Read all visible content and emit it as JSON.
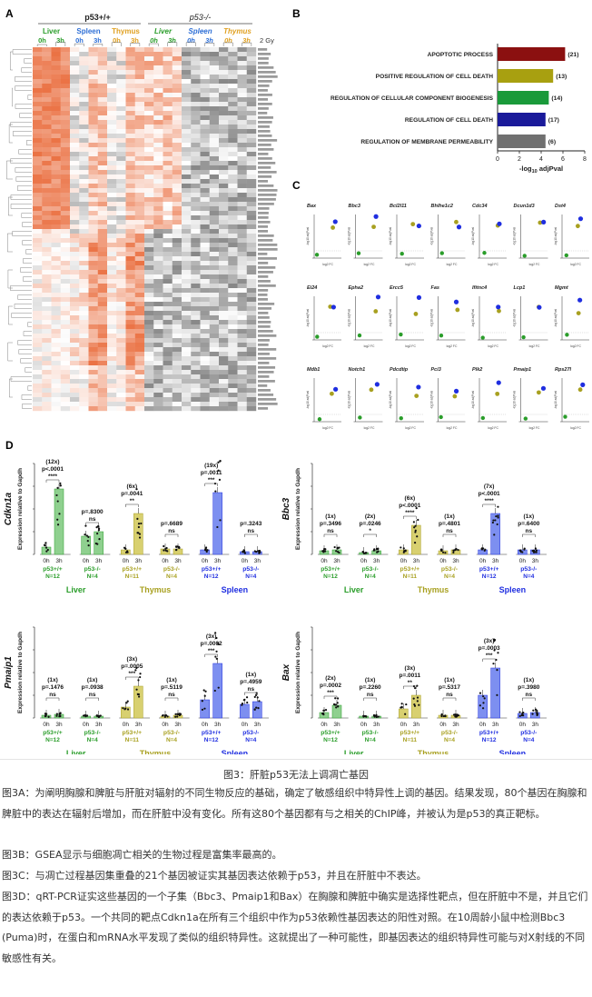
{
  "panel_a": {
    "letter": "A",
    "groups": [
      {
        "label": "p53+/+",
        "italic": false
      },
      {
        "label": "p53-/-",
        "italic": true
      }
    ],
    "tissues": [
      {
        "label": "Liver",
        "color": "#2a9d2a"
      },
      {
        "label": "Spleen",
        "color": "#2e6fd6"
      },
      {
        "label": "Thymus",
        "color": "#e0a020"
      },
      {
        "label": "Liver",
        "color": "#2a9d2a"
      },
      {
        "label": "Spleen",
        "color": "#2e6fd6"
      },
      {
        "label": "Thymus",
        "color": "#e0a020"
      }
    ],
    "timepoints": [
      "0h",
      "3h"
    ],
    "dose": "2 Gy",
    "colors": {
      "high": "#e8622f",
      "mid": "#ffffff",
      "low": "#555555"
    }
  },
  "panel_b": {
    "letter": "B",
    "xlabel_prefix": "-log",
    "xlabel_sub": "10",
    "xlabel_suffix": " adjPval",
    "xticks": [
      "0",
      "2",
      "4",
      "6",
      "8"
    ]
  },
  "panel_c": {
    "letter": "C",
    "genes": [
      "Bax",
      "Bbc3",
      "Bcl2l11",
      "Bhlhe1c2",
      "Cdc34",
      "Dcun1d3",
      "Dst4",
      "Ei24",
      "Epha2",
      "Ercc5",
      "Fas",
      "Ifitnc4",
      "Lcp1",
      "Mgmt",
      "Mdb1",
      "Notch1",
      "Pdcdtip",
      "Pci3",
      "Plk2",
      "Pmaip1",
      "Rps27l"
    ],
    "ylabel": "-log10 adjPval",
    "xlabel": "log2 FC",
    "colors": {
      "liver": "#2a9d2a",
      "spleen": "#1f2ee0",
      "thymus": "#a8a020"
    }
  },
  "panel_d": {
    "letter": "D",
    "ylabel_suffix": " Expression relative to Gapdh",
    "plots": [
      {
        "gene": "Cdkn1a",
        "ylabel": "Expression relative to Gapdh",
        "labels": [
          {
            "fold": "(12x)",
            "p": "p<.0001",
            "stars": "****"
          },
          {
            "fold": "",
            "p": "p=.8300",
            "stars": "ns"
          },
          {
            "fold": "(6x)",
            "p": "p=.0041",
            "stars": "**"
          },
          {
            "fold": "",
            "p": "p=.6689",
            "stars": "ns"
          },
          {
            "fold": "(19x)",
            "p": "p=.0011",
            "stars": "***"
          },
          {
            "fold": "",
            "p": "p=.3243",
            "stars": "ns"
          }
        ]
      },
      {
        "gene": "Bbc3",
        "ylabel": "Expression relative to Gapdh",
        "labels": [
          {
            "fold": "(1x)",
            "p": "p=.3496",
            "stars": "ns"
          },
          {
            "fold": "(2x)",
            "p": "p=.0246",
            "stars": "*"
          },
          {
            "fold": "(6x)",
            "p": "p<.0001",
            "stars": "****"
          },
          {
            "fold": "(1x)",
            "p": "p=.4801",
            "stars": "ns"
          },
          {
            "fold": "(7x)",
            "p": "p<.0001",
            "stars": "****"
          },
          {
            "fold": "(1x)",
            "p": "p=.6400",
            "stars": "ns"
          }
        ]
      },
      {
        "gene": "Pmaip1",
        "ylabel": "Expression relative to Gapdh",
        "labels": [
          {
            "fold": "(1x)",
            "p": "p=.1476",
            "stars": "ns"
          },
          {
            "fold": "(1x)",
            "p": "p=.0938",
            "stars": "ns"
          },
          {
            "fold": "(3x)",
            "p": "p=.0005",
            "stars": "***"
          },
          {
            "fold": "(1x)",
            "p": "p=.5119",
            "stars": "ns"
          },
          {
            "fold": "(3x)",
            "p": "p=.0002",
            "stars": "***"
          },
          {
            "fold": "(1x)",
            "p": "p=.4959",
            "stars": "ns"
          }
        ]
      },
      {
        "gene": "Bax",
        "ylabel": "Expression relative to Gapdh",
        "labels": [
          {
            "fold": "(2x)",
            "p": "p=.0002",
            "stars": "***"
          },
          {
            "fold": "(1x)",
            "p": "p=.2260",
            "stars": "ns"
          },
          {
            "fold": "(3x)",
            "p": "p=.0011",
            "stars": "**"
          },
          {
            "fold": "(1x)",
            "p": "p=.5317",
            "stars": "ns"
          },
          {
            "fold": "(3x)",
            "p": "p=.0003",
            "stars": "***"
          },
          {
            "fold": "(1x)",
            "p": "p=.3980",
            "stars": "ns"
          }
        ]
      }
    ],
    "groups": [
      {
        "geno": "p53+/+",
        "n": "N=12",
        "color": "#2a9d2a"
      },
      {
        "geno": "p53-/-",
        "n": "N=4",
        "color": "#2a9d2a"
      },
      {
        "geno": "p53+/+",
        "n": "N=11",
        "color": "#a8a020"
      },
      {
        "geno": "p53-/-",
        "n": "N=4",
        "color": "#a8a020"
      },
      {
        "geno": "p53+/+",
        "n": "N=12",
        "color": "#1f2ee0"
      },
      {
        "geno": "p53-/-",
        "n": "N=4",
        "color": "#1f2ee0"
      }
    ],
    "gmt_groups": {
      "Bbc3": [
        {
          "geno": "p53+/+",
          "n": "N=12"
        },
        {
          "geno": "p53-/-",
          "n": "N=4"
        },
        {
          "geno": "p53+/+",
          "n": "N=12"
        },
        {
          "geno": "p53-/-",
          "n": "N=4"
        },
        {
          "geno": "p53+/+",
          "n": "N=12"
        },
        {
          "geno": "p53-/-",
          "n": "N=4"
        }
      ]
    },
    "tissues": [
      {
        "label": "Liver",
        "color": "#2a9d2a"
      },
      {
        "label": "Thymus",
        "color": "#a8a020"
      },
      {
        "label": "Spleen",
        "color": "#1f2ee0"
      }
    ],
    "timepoints": [
      "0h",
      "3h"
    ]
  },
  "chart_data": {
    "type": "bar",
    "categories": [
      "APOPTOTIC PROCESS",
      "POSITIVE REGULATION OF CELL DEATH",
      "REGULATION OF CELLULAR COMPONENT BIOGENESIS",
      "REGULATION OF CELL DEATH",
      "REGULATION OF MEMBRANE PERMEABILITY"
    ],
    "values": [
      6.2,
      5.1,
      4.7,
      4.4,
      4.4
    ],
    "counts": [
      "(21)",
      "(13)",
      "(14)",
      "(17)",
      "(6)"
    ],
    "bar_colors": [
      "#8b1010",
      "#a8a010",
      "#1a9a3a",
      "#1a1a9a",
      "#707070"
    ],
    "orientation": "horizontal",
    "xlim": [
      0,
      8
    ],
    "xlabel": "-log10 adjPval",
    "grid": false
  },
  "caption": {
    "title": "图3：肝脏p53无法上调凋亡基因",
    "paragraphs": [
      "图3A：为阐明胸腺和脾脏与肝脏对辐射的不同生物反应的基础，确定了敏感组织中特异性上调的基因。结果发现，80个基因在胸腺和脾脏中的表达在辐射后增加，而在肝脏中没有变化。所有这80个基因都有与之相关的ChIP峰，并被认为是p53的真正靶标。",
      "图3B：GSEA显示与细胞凋亡相关的生物过程是富集率最高的。",
      "图3C：与凋亡过程基因集重叠的21个基因被证实其基因表达依赖于p53，并且在肝脏中不表达。",
      "图3D：qRT-PCR证实这些基因的一个子集（Bbc3、Pmaip1和Bax）在胸腺和脾脏中确实是选择性靶点，但在肝脏中不是，并且它们的表达依赖于p53。一个共同的靶点Cdkn1a在所有三个组织中作为p53依赖性基因表达的阳性对照。在10周龄小鼠中检测Bbc3 (Puma)时，在蛋白和mRNA水平发现了类似的组织特异性。这就提出了一种可能性，即基因表达的组织特异性可能与对X射线的不同敏感性有关。"
    ]
  }
}
